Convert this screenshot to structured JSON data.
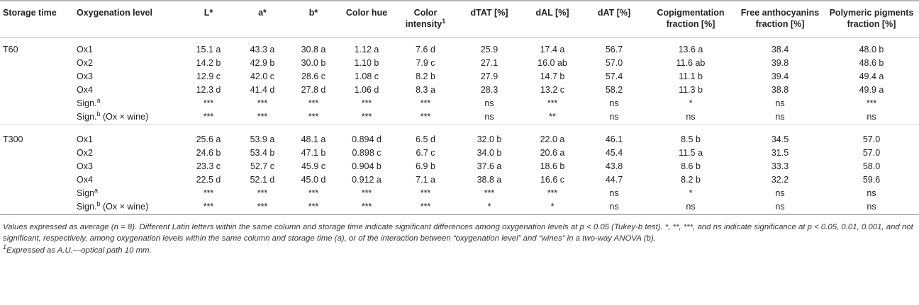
{
  "table": {
    "headers": {
      "storage_time": "Storage time",
      "oxygenation_level": "Oxygenation level",
      "L": "L*",
      "a": "a*",
      "b": "b*",
      "color_hue": "Color hue",
      "color_intensity": "Color intensity",
      "color_intensity_sup": "1",
      "dTAT": "dTAT [%]",
      "dAL": "dAL [%]",
      "dAT": "dAT [%]",
      "copigmentation": "Copigmentation fraction [%]",
      "free_anthocyanins": "Free anthocyanins fraction [%]",
      "polymeric_pigments": "Polymeric pigments fraction [%]"
    },
    "groups": [
      {
        "storage_time": "T60",
        "rows": [
          {
            "label": "Ox1",
            "sup": "",
            "suffix": "",
            "cells": [
              "15.1 a",
              "43.3 a",
              "30.8 a",
              "1.12 a",
              "7.6 d",
              "25.9",
              "17.4 a",
              "56.7",
              "13.6 a",
              "38.4",
              "48.0 b"
            ]
          },
          {
            "label": "Ox2",
            "sup": "",
            "suffix": "",
            "cells": [
              "14.2 b",
              "42.9 b",
              "30.0 b",
              "1.10 b",
              "7.9 c",
              "27.1",
              "16.0 ab",
              "57.0",
              "11.6 ab",
              "39.8",
              "48.6 b"
            ]
          },
          {
            "label": "Ox3",
            "sup": "",
            "suffix": "",
            "cells": [
              "12.9 c",
              "42.0 c",
              "28.6 c",
              "1.08 c",
              "8.2 b",
              "27.9",
              "14.7 b",
              "57.4",
              "11.1 b",
              "39.4",
              "49.4 a"
            ]
          },
          {
            "label": "Ox4",
            "sup": "",
            "suffix": "",
            "cells": [
              "12.3 d",
              "41.4 d",
              "27.8 d",
              "1.06 d",
              "8.3 a",
              "28.3",
              "13.2 c",
              "58.2",
              "11.3 b",
              "38.8",
              "49.9 a"
            ]
          },
          {
            "label": "Sign.",
            "sup": "a",
            "suffix": "",
            "cells": [
              "***",
              "***",
              "***",
              "***",
              "***",
              "ns",
              "***",
              "ns",
              "*",
              "ns",
              "***"
            ]
          },
          {
            "label": "Sign.",
            "sup": "b",
            "suffix": " (Ox × wine)",
            "cells": [
              "***",
              "***",
              "***",
              "***",
              "***",
              "ns",
              "**",
              "ns",
              "ns",
              "ns",
              "ns"
            ]
          }
        ]
      },
      {
        "storage_time": "T300",
        "rows": [
          {
            "label": "Ox1",
            "sup": "",
            "suffix": "",
            "cells": [
              "25.6 a",
              "53.9 a",
              "48.1 a",
              "0.894 d",
              "6.5 d",
              "32.0 b",
              "22.0 a",
              "46.1",
              "8.5 b",
              "34.5",
              "57.0"
            ]
          },
          {
            "label": "Ox2",
            "sup": "",
            "suffix": "",
            "cells": [
              "24.6 b",
              "53.4 b",
              "47.1 b",
              "0.898 c",
              "6.7 c",
              "34.0 b",
              "20.6 a",
              "45.4",
              "11.5 a",
              "31.5",
              "57.0"
            ]
          },
          {
            "label": "Ox3",
            "sup": "",
            "suffix": "",
            "cells": [
              "23.3 c",
              "52.7 c",
              "45.9 c",
              "0.904 b",
              "6.9 b",
              "37.6 a",
              "18.6 b",
              "43.8",
              "8.6 b",
              "33.3",
              "58.0"
            ]
          },
          {
            "label": "Ox4",
            "sup": "",
            "suffix": "",
            "cells": [
              "22.5 d",
              "52.1 d",
              "45.0 d",
              "0.912 a",
              "7.1 a",
              "38.8 a",
              "16.6 c",
              "44.7",
              "8.2 b",
              "32.2",
              "59.6"
            ]
          },
          {
            "label": "Sign",
            "sup": "a",
            "suffix": "",
            "cells": [
              "***",
              "***",
              "***",
              "***",
              "***",
              "***",
              "***",
              "ns",
              "*",
              "ns",
              "ns"
            ]
          },
          {
            "label": "Sign.",
            "sup": "b",
            "suffix": " (Ox × wine)",
            "cells": [
              "***",
              "***",
              "***",
              "***",
              "***",
              "*",
              "*",
              "ns",
              "ns",
              "ns",
              "ns"
            ]
          }
        ]
      }
    ]
  },
  "footnotes": {
    "main": "Values expressed as average (n = 8). Different Latin letters within the same column and storage time indicate significant differences among oxygenation levels at p < 0.05 (Tukey-b test). *, **, ***, and ns indicate significance at p < 0.05, 0.01, 0.001, and not significant, respectively, among oxygenation levels within the same column and storage time (a), or of the interaction between “oxygenation level” and “wines” in a two-way ANOVA (b).",
    "note1_sup": "1",
    "note1": "Expressed as A.U.—optical path 10 mm."
  }
}
